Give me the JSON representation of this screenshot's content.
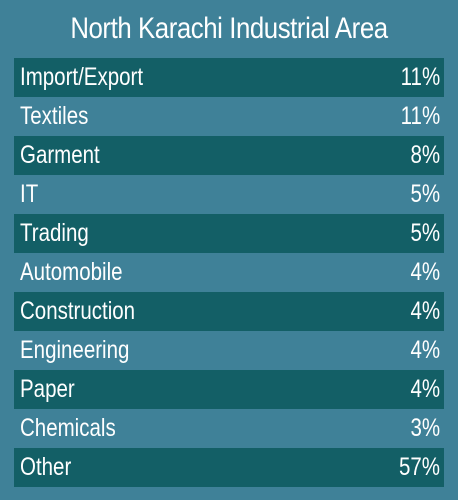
{
  "chart_data": {
    "type": "table",
    "title": "North Karachi Industrial Area",
    "unit": "%",
    "categories": [
      "Import/Export",
      "Textiles",
      "Garment",
      "IT",
      "Trading",
      "Automobile",
      "Construction",
      "Engineering",
      "Paper",
      "Chemicals",
      "Other"
    ],
    "values": [
      11,
      11,
      8,
      5,
      5,
      4,
      4,
      4,
      4,
      3,
      57
    ],
    "value_labels": [
      "11%",
      "11%",
      "8%",
      "5%",
      "5%",
      "4%",
      "4%",
      "4%",
      "4%",
      "3%",
      "57%"
    ]
  },
  "colors": {
    "background": "#3f8198",
    "row_stripe": "#135f66",
    "text": "#ffffff"
  }
}
